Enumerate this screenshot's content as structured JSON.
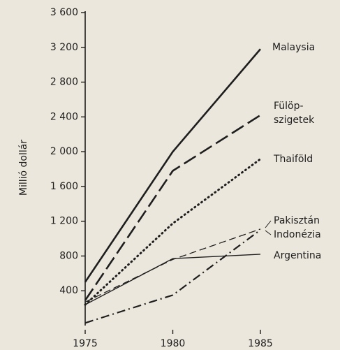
{
  "chart_data": {
    "type": "line",
    "ylabel": "Millió dollár",
    "x": [
      1975,
      1980,
      1985
    ],
    "xlim": [
      1975,
      1985
    ],
    "xticks": [
      1975,
      1980,
      1985
    ],
    "ylim": [
      0,
      3600
    ],
    "yticks": [
      {
        "value": 400,
        "label": "400"
      },
      {
        "value": 800,
        "label": "800"
      },
      {
        "value": 1200,
        "label": "1 200"
      },
      {
        "value": 1600,
        "label": "1 600"
      },
      {
        "value": 2000,
        "label": "2 000"
      },
      {
        "value": 2400,
        "label": "2 400"
      },
      {
        "value": 2800,
        "label": "2 800"
      },
      {
        "value": 3200,
        "label": "3 200"
      },
      {
        "value": 3600,
        "label": "3 600"
      }
    ],
    "series": [
      {
        "name": "Malaysia",
        "color": "#1e1e1e",
        "linestyle": "solid",
        "width": 2.6,
        "values": [
          500,
          2000,
          3180
        ]
      },
      {
        "name": "Fülöp-\nszigetek",
        "color": "#1e1e1e",
        "linestyle": "longdash",
        "width": 2.6,
        "values": [
          290,
          1780,
          2420
        ]
      },
      {
        "name": "Thaiföld",
        "color": "#1e1e1e",
        "linestyle": "dotted",
        "width": 3,
        "values": [
          240,
          1175,
          1915
        ]
      },
      {
        "name": "Pakisztán",
        "color": "#1e1e1e",
        "linestyle": "dashed",
        "width": 1.3,
        "values": [
          270,
          760,
          1110
        ]
      },
      {
        "name": "Indonézia",
        "color": "#1e1e1e",
        "linestyle": "dashdot",
        "width": 2.2,
        "values": [
          30,
          350,
          1100
        ]
      },
      {
        "name": "Argentina",
        "color": "#1e1e1e",
        "linestyle": "solid",
        "width": 1.4,
        "values": [
          240,
          770,
          820
        ]
      }
    ]
  }
}
